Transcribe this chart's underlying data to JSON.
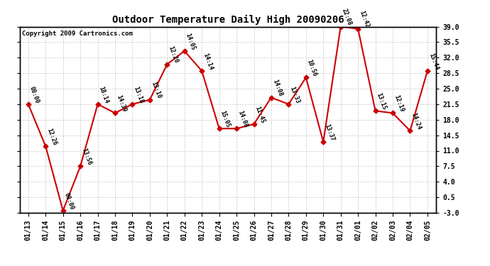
{
  "title": "Outdoor Temperature Daily High 20090206",
  "copyright": "Copyright 2009 Cartronics.com",
  "dates": [
    "01/13",
    "01/14",
    "01/15",
    "01/16",
    "01/17",
    "01/18",
    "01/19",
    "01/20",
    "01/21",
    "01/22",
    "01/23",
    "01/24",
    "01/25",
    "01/26",
    "01/27",
    "01/28",
    "01/29",
    "01/30",
    "01/31",
    "02/01",
    "02/02",
    "02/03",
    "02/04",
    "02/05"
  ],
  "temps": [
    21.5,
    12.0,
    -2.5,
    7.5,
    21.5,
    19.5,
    21.5,
    22.5,
    30.5,
    33.5,
    29.0,
    16.0,
    16.0,
    17.0,
    23.0,
    21.5,
    27.5,
    13.0,
    39.0,
    38.5,
    20.0,
    19.5,
    15.5,
    29.0
  ],
  "labels": [
    "00:00",
    "12:26",
    "00:00",
    "13:56",
    "18:14",
    "14:39",
    "13:18",
    "13:10",
    "12:20",
    "14:05",
    "14:14",
    "15:05",
    "14:08",
    "11:45",
    "14:08",
    "13:33",
    "10:56",
    "13:37",
    "22:08",
    "12:42",
    "13:15",
    "12:19",
    "14:24",
    "15:44"
  ],
  "line_color": "#cc0000",
  "marker_color": "#cc0000",
  "bg_color": "#ffffff",
  "grid_color": "#bbbbbb",
  "ylim": [
    -3.0,
    39.0
  ],
  "yticks": [
    -3.0,
    0.5,
    4.0,
    7.5,
    11.0,
    14.5,
    18.0,
    21.5,
    25.0,
    28.5,
    32.0,
    35.5,
    39.0
  ],
  "figsize": [
    6.9,
    3.75
  ],
  "dpi": 100
}
